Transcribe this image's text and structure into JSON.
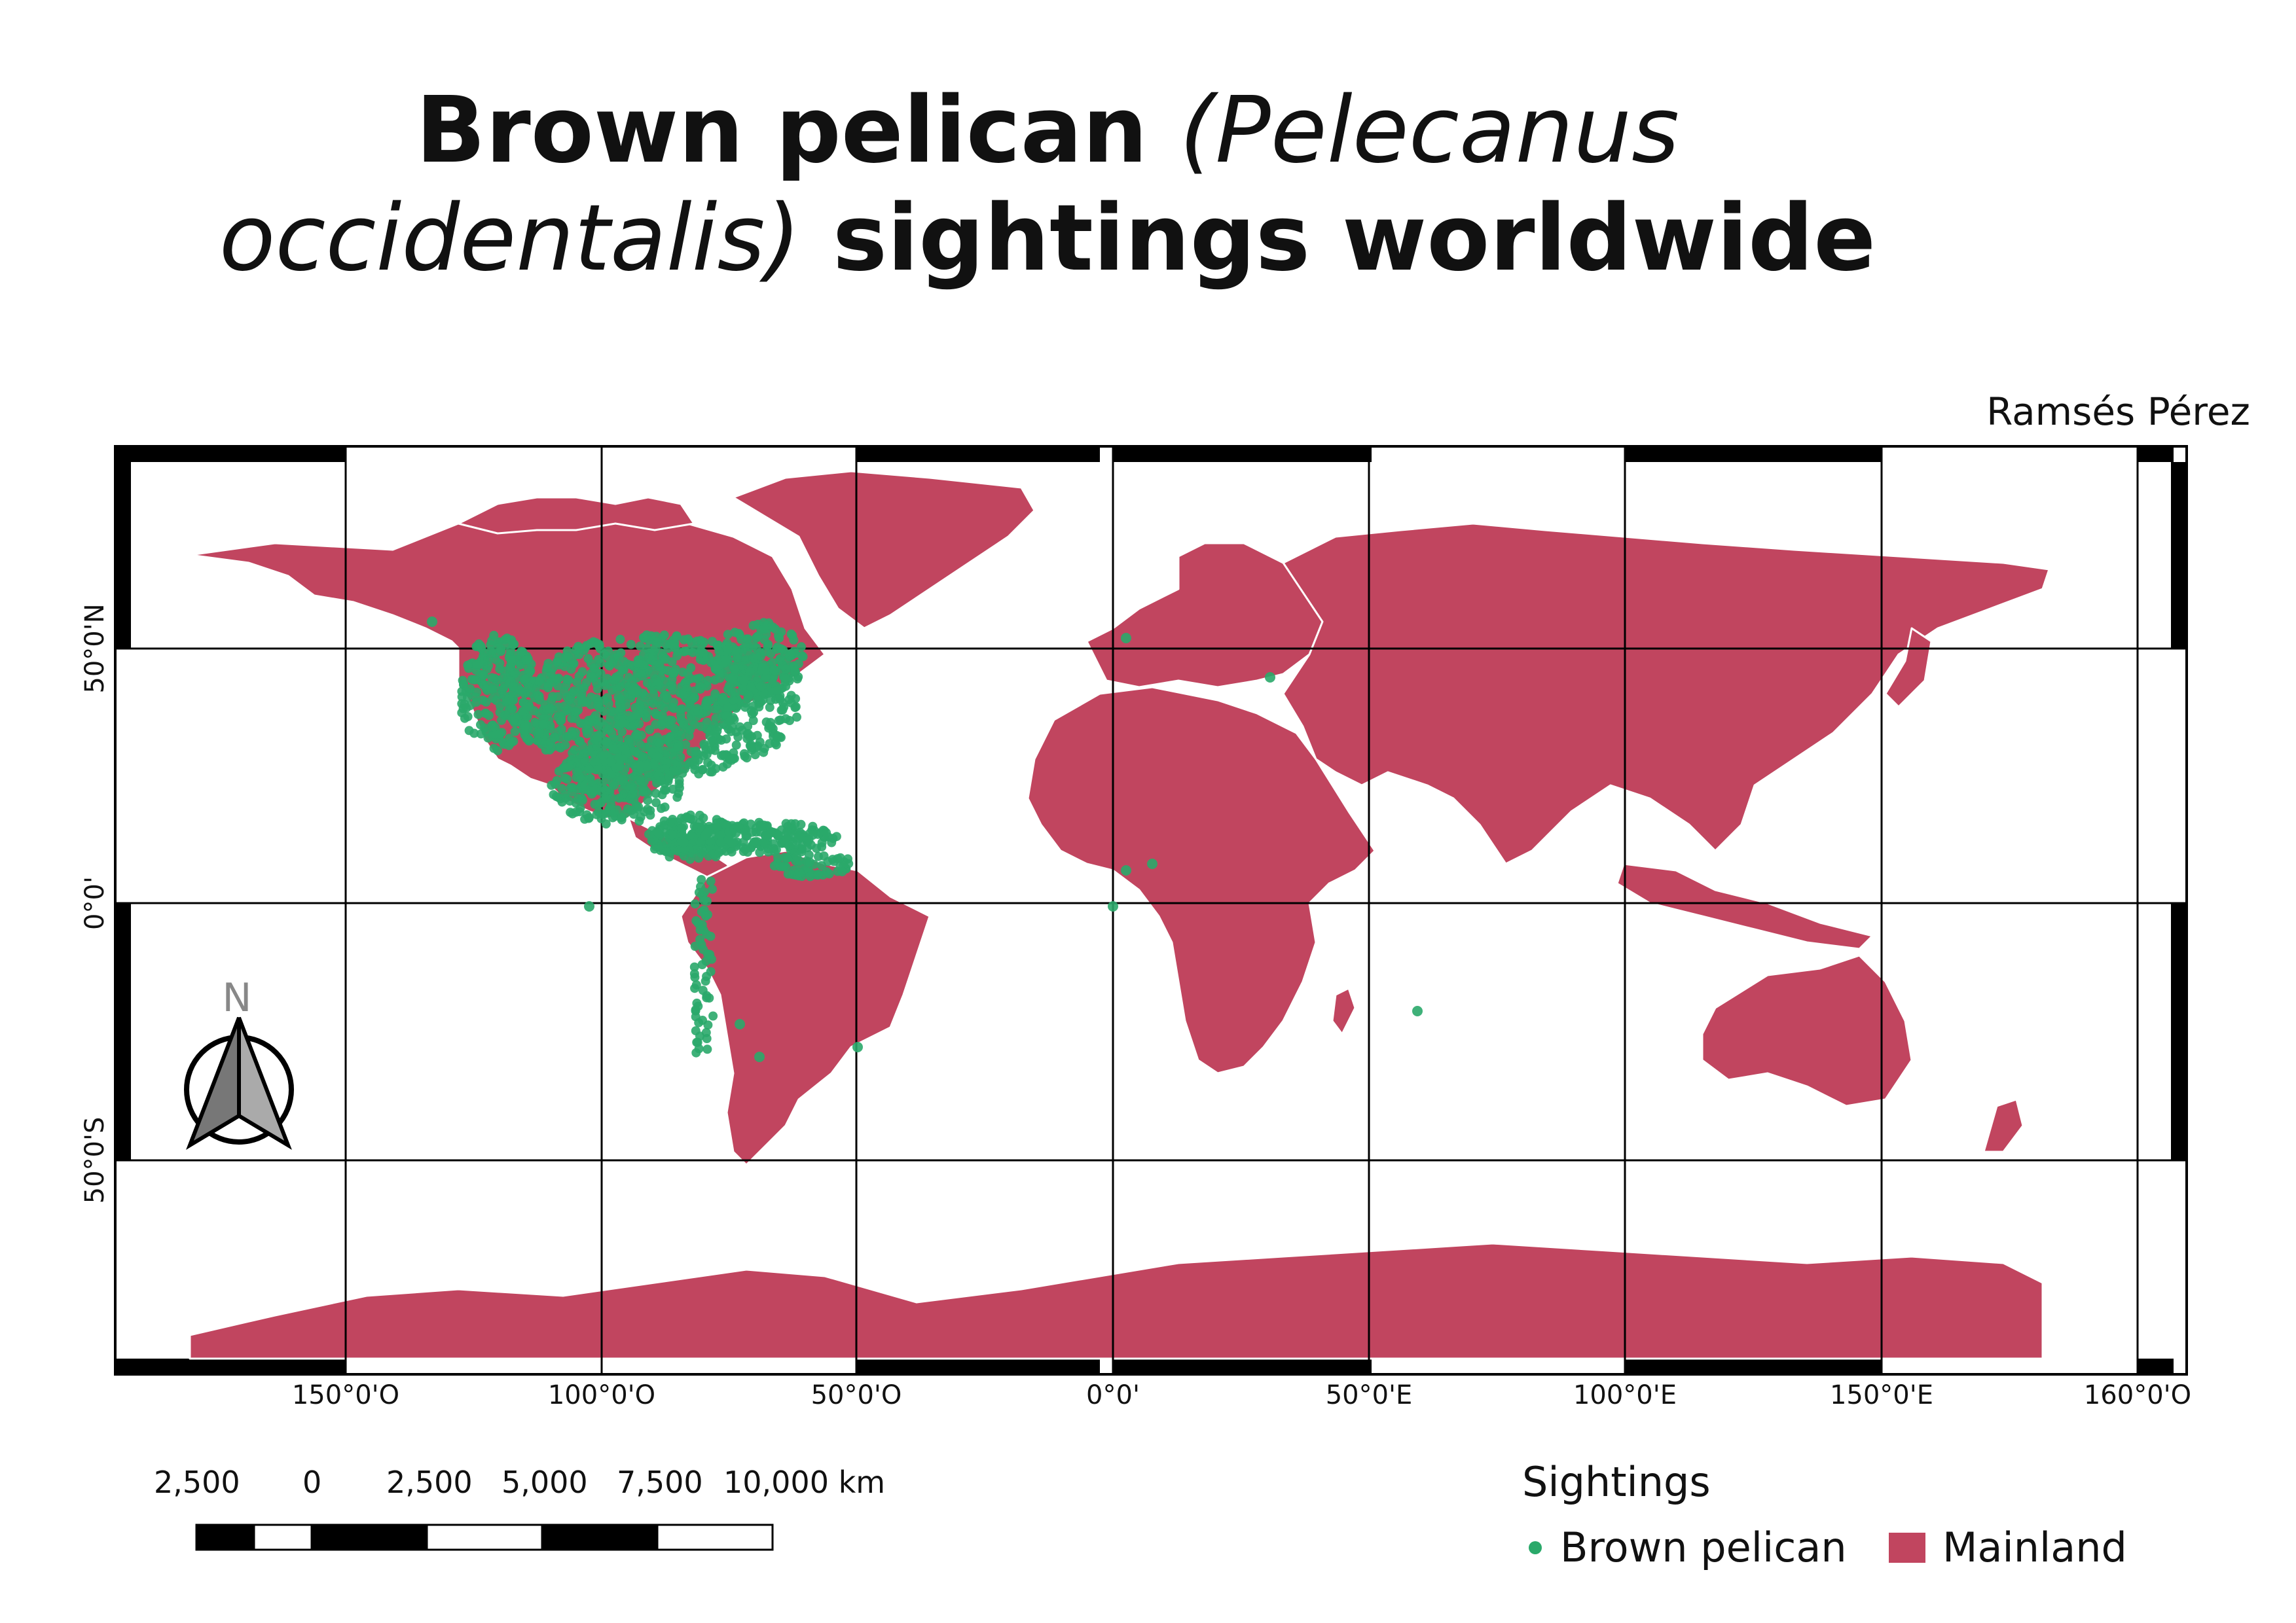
{
  "title": {
    "line1_plain": "Brown pelican ",
    "line1_italic": "(Pelecanus",
    "line2_italic": "occidentalis)",
    "line2_plain": " sightings worldwide"
  },
  "author": "Ramsés Pérez",
  "colors": {
    "land": "#c1455f",
    "sightings": "#2aa96a",
    "borders": "#ffffff",
    "graticule": "#000000"
  },
  "axes": {
    "x_labels": [
      "150°0'O",
      "100°0'O",
      "50°0'O",
      "0°0'",
      "50°0'E",
      "100°0'E",
      "150°0'E",
      "160°0'O"
    ],
    "y_labels": [
      "50°0'N",
      "0°0'",
      "50°0'S"
    ]
  },
  "north_arrow": {
    "label": "N"
  },
  "scale_bar": {
    "labels": [
      "2,500",
      "0",
      "2,500",
      "5,000",
      "7,500",
      "10,000 km"
    ]
  },
  "legend": {
    "title": "Sightings",
    "items": [
      {
        "label": "Brown pelican",
        "symbol": "dot"
      },
      {
        "label": "Mainland",
        "symbol": "square"
      }
    ]
  },
  "map_view": {
    "projection": "equirectangular",
    "lon_range": [
      -190,
      210
    ],
    "lat_range": [
      -90,
      90
    ]
  }
}
